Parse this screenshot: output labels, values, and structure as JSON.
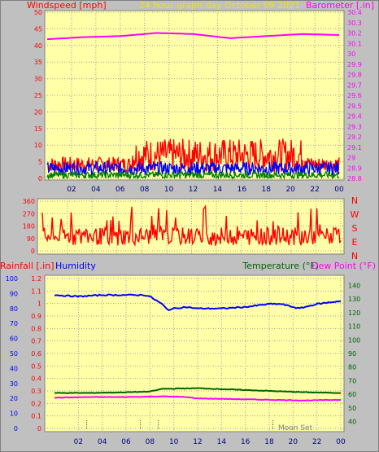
{
  "header": {
    "left_label": "Windspeed [mph]",
    "center_title": "24 hour graph day   October 09 2021",
    "right_label": "Barometer [.in]"
  },
  "bottom_header": {
    "rainfall_label": "Rainfall [.in]",
    "humidity_label": "Humidity",
    "temperature_label": "Temperature (°F)",
    "dewpoint_label": "Dew Point (°F)"
  },
  "moon_label": "Moon Set",
  "colors": {
    "background": "#c0c0c0",
    "plot_bg": "#ffffa8",
    "wind_red": "#ff0000",
    "gust_blue": "#0000ff",
    "speed_green": "#008000",
    "barometer": "#ff00ff",
    "humidity": "#0000ff",
    "temperature": "#006400",
    "dewpoint": "#ff00ff",
    "title_yellow": "#e8e800"
  },
  "chart_data": [
    {
      "type": "line",
      "name": "wind-barometer",
      "x_ticks": [
        "02",
        "04",
        "06",
        "08",
        "10",
        "12",
        "14",
        "16",
        "18",
        "20",
        "22",
        "00"
      ],
      "y_left_ticks": [
        "0",
        "5",
        "10",
        "15",
        "20",
        "25",
        "30",
        "35",
        "40",
        "45",
        "50"
      ],
      "y_left_lim": [
        0,
        50
      ],
      "y_right_ticks": [
        "28.8",
        "28.9",
        "29",
        "29.1",
        "29.2",
        "29.3",
        "29.4",
        "29.5",
        "29.6",
        "29.7",
        "29.8",
        "29.9",
        "30",
        "30.1",
        "30.2",
        "30.3",
        "30.4"
      ],
      "y_right_lim": [
        28.8,
        30.4
      ],
      "series": [
        {
          "name": "Barometer",
          "axis": "right",
          "hours": [
            0,
            3,
            6,
            9,
            12,
            15,
            18,
            21,
            24
          ],
          "values": [
            30.14,
            30.16,
            30.17,
            30.2,
            30.19,
            30.15,
            30.17,
            30.19,
            30.18
          ]
        },
        {
          "axis": "left",
          "band": [
            2,
            12
          ],
          "peak_hours": [
            6,
            20
          ]
        },
        {
          "axis": "left",
          "band": [
            1,
            5
          ]
        },
        {
          "axis": "left",
          "band": [
            0,
            2
          ]
        }
      ]
    },
    {
      "type": "line",
      "name": "wind-direction",
      "x_ticks": [],
      "y_left_ticks": [
        "0",
        "90",
        "180",
        "270",
        "360"
      ],
      "y_left_lim": [
        0,
        360
      ],
      "y_right_ticks": [
        "N",
        "W",
        "S",
        "E",
        "N"
      ],
      "series": [
        {
          "axis": "left",
          "typical": [
            40,
            170
          ],
          "spike_max": 330
        }
      ]
    },
    {
      "type": "line",
      "name": "temp-humidity",
      "x_ticks": [
        "02",
        "04",
        "06",
        "08",
        "10",
        "12",
        "14",
        "16",
        "18",
        "20",
        "22",
        "00"
      ],
      "y_far_left_ticks": [
        "0",
        "10",
        "20",
        "30",
        "40",
        "50",
        "60",
        "70",
        "80",
        "90",
        "100"
      ],
      "y_far_left_lim": [
        0,
        100
      ],
      "y_left_ticks": [
        "0",
        "0.1",
        "0.2",
        "0.3",
        "0.4",
        "0.5",
        "0.6",
        "0.7",
        "0.8",
        "0.9",
        "1",
        "1.1",
        "1.2"
      ],
      "y_left_lim": [
        0,
        1.2
      ],
      "y_right_ticks": [
        "40",
        "50",
        "60",
        "70",
        "80",
        "90",
        "100",
        "110",
        "120",
        "130",
        "140"
      ],
      "y_right_lim": [
        35,
        145
      ],
      "series": [
        {
          "name": "Humidity",
          "axis": "far_left",
          "hours": [
            0,
            2,
            4,
            6,
            7.5,
            8,
            9,
            9.5,
            10,
            11,
            12,
            14,
            16,
            18,
            19,
            20,
            20.5,
            22,
            24
          ],
          "values": [
            89,
            88,
            89,
            89,
            89,
            88,
            83,
            79,
            80,
            81,
            80,
            80,
            81,
            83,
            83,
            81,
            80,
            83,
            85
          ]
        },
        {
          "name": "Temperature",
          "axis": "right",
          "hours": [
            0,
            3,
            6,
            8,
            9,
            12,
            15,
            18,
            21,
            24
          ],
          "values": [
            61,
            61,
            61.5,
            62,
            64,
            64.5,
            63.5,
            62.5,
            61.5,
            61
          ]
        },
        {
          "name": "Dew Point",
          "axis": "right",
          "hours": [
            0,
            3,
            6,
            9,
            11,
            12,
            15,
            18,
            21,
            24
          ],
          "values": [
            57.5,
            58,
            58,
            58.5,
            58,
            57,
            56.5,
            56,
            55.5,
            56
          ]
        }
      ]
    }
  ]
}
